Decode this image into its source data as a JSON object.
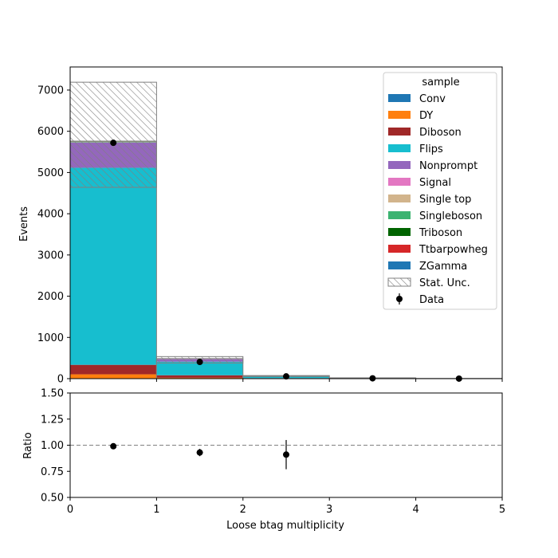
{
  "chart_data": [
    {
      "type": "bar",
      "stacked": true,
      "xlabel": "",
      "ylabel": "Events",
      "xlim": [
        0,
        5
      ],
      "ylim": [
        0,
        7560
      ],
      "x_bins": [
        [
          0,
          1
        ],
        [
          1,
          2
        ],
        [
          2,
          3
        ],
        [
          3,
          4
        ],
        [
          4,
          5
        ]
      ],
      "yticks": [
        0,
        1000,
        2000,
        3000,
        4000,
        5000,
        6000,
        7000
      ],
      "xtick_labels_visible": false,
      "grid": false,
      "legend": {
        "title": "sample",
        "placement": "top-right",
        "stat_unc_label": "Stat. Unc.",
        "data_label": "Data"
      },
      "series": [
        {
          "name": "Conv",
          "color": "#1f77b4",
          "values": [
            5,
            2,
            0,
            0,
            0
          ]
        },
        {
          "name": "DY",
          "color": "#ff7f0e",
          "values": [
            100,
            20,
            3,
            0,
            0
          ]
        },
        {
          "name": "Diboson",
          "color": "#a02828",
          "values": [
            230,
            60,
            10,
            2,
            0
          ]
        },
        {
          "name": "Flips",
          "color": "#17becf",
          "values": [
            4780,
            330,
            35,
            5,
            0
          ]
        },
        {
          "name": "Nonprompt",
          "color": "#9467bd",
          "values": [
            610,
            60,
            10,
            3,
            1
          ]
        },
        {
          "name": "Signal",
          "color": "#e377c2",
          "values": [
            5,
            2,
            1,
            0,
            0
          ]
        },
        {
          "name": "Single top",
          "color": "#d2b48c",
          "values": [
            3,
            1,
            0,
            0,
            0
          ]
        },
        {
          "name": "Singleboson",
          "color": "#3cb371",
          "values": [
            15,
            5,
            1,
            0,
            0
          ]
        },
        {
          "name": "Triboson",
          "color": "#006400",
          "values": [
            2,
            1,
            0,
            0,
            0
          ]
        },
        {
          "name": "Ttbarpowheg",
          "color": "#d62728",
          "values": [
            10,
            5,
            2,
            0,
            0
          ]
        },
        {
          "name": "ZGamma",
          "color": "#1f77b4",
          "values": [
            2,
            1,
            0,
            0,
            0
          ]
        }
      ],
      "stat_unc": {
        "lower": [
          4640,
          380,
          52,
          5,
          0
        ],
        "upper": [
          7190,
          535,
          75,
          20,
          5
        ]
      },
      "data": {
        "x": [
          0.5,
          1.5,
          2.5,
          3.5,
          4.5
        ],
        "y": [
          5720,
          405,
          55,
          8,
          1
        ]
      }
    },
    {
      "type": "scatter",
      "xlabel": "Loose btag multiplicity",
      "ylabel": "Ratio",
      "xlim": [
        0,
        5
      ],
      "ylim": [
        0.5,
        1.5
      ],
      "xticks": [
        0,
        1,
        2,
        3,
        4,
        5
      ],
      "yticks": [
        0.5,
        0.75,
        1.0,
        1.25,
        1.5
      ],
      "ytick_labels": [
        "0.50",
        "0.75",
        "1.00",
        "1.25",
        "1.50"
      ],
      "reference_line": 1.0,
      "grid": false,
      "points": [
        {
          "x": 0.5,
          "y": 0.99,
          "err": 0.0
        },
        {
          "x": 1.5,
          "y": 0.93,
          "err": 0.035
        },
        {
          "x": 2.5,
          "y": 0.91,
          "err": 0.14
        }
      ]
    }
  ]
}
